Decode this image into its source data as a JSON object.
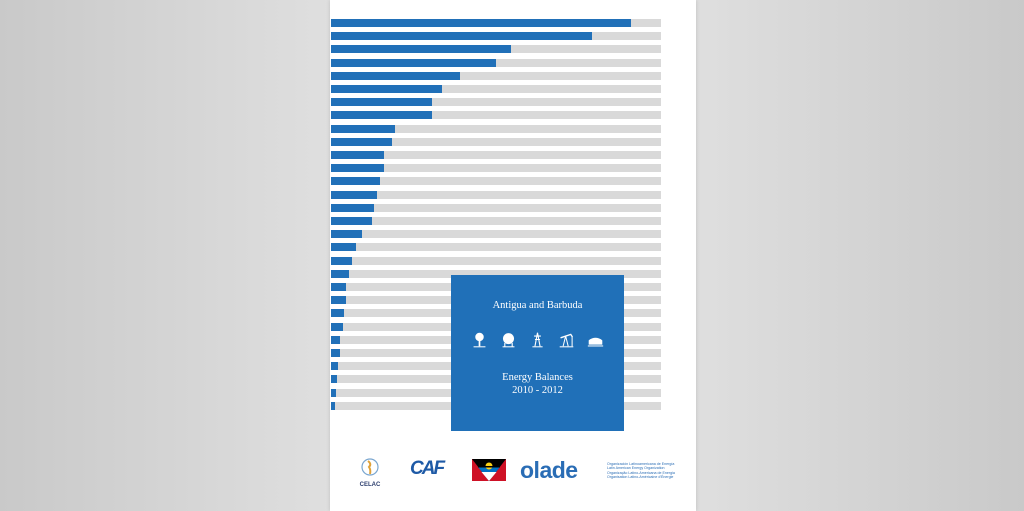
{
  "colors": {
    "accent": "#2070b8",
    "track": "#d9d9d9",
    "background": "#ffffff"
  },
  "bars": {
    "fractions": [
      0.91,
      0.79,
      0.545,
      0.5,
      0.39,
      0.335,
      0.307,
      0.307,
      0.195,
      0.186,
      0.16,
      0.16,
      0.148,
      0.139,
      0.131,
      0.123,
      0.095,
      0.076,
      0.065,
      0.055,
      0.046,
      0.046,
      0.04,
      0.037,
      0.028,
      0.028,
      0.022,
      0.019,
      0.015,
      0.012
    ]
  },
  "panel": {
    "country": "Antigua and Barbuda",
    "icons": [
      "tree-icon",
      "gas-sphere-icon",
      "power-tower-icon",
      "oil-pump-icon",
      "storage-tank-icon"
    ],
    "subtitle": "Energy Balances",
    "years": "2010 - 2012"
  },
  "logos": {
    "celac": "CELAC",
    "caf": "CAF",
    "flag": "antigua-and-barbuda-flag",
    "olade": "olade",
    "olade_description": [
      "Organización Latinoamericana de Energía",
      "Latin American Energy Organization",
      "Organização Latino-Americana de Energia",
      "Organisation Latino-Américaine d'Énergie"
    ]
  }
}
